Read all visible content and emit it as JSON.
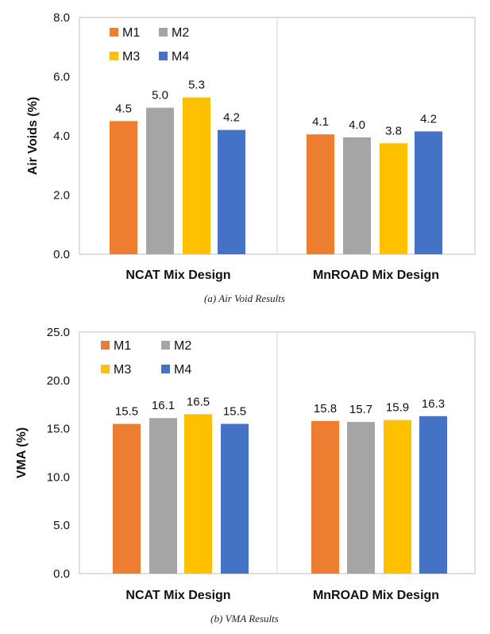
{
  "chart_data": [
    {
      "type": "bar",
      "title": "",
      "caption": "(a) Air Void Results",
      "xlabel": "",
      "ylabel": "Air Voids (%)",
      "ylim": [
        0,
        8
      ],
      "yticks": [
        "0.0",
        "2.0",
        "4.0",
        "6.0",
        "8.0"
      ],
      "categories": [
        "NCAT Mix Design",
        "MnROAD Mix Design"
      ],
      "legend_position": "top-left",
      "grid": false,
      "series": [
        {
          "name": "M1",
          "color": "#ED7D31",
          "values": [
            4.5,
            4.05
          ],
          "labels": [
            "4.5",
            "4.1"
          ]
        },
        {
          "name": "M2",
          "color": "#A5A5A5",
          "values": [
            4.95,
            3.95
          ],
          "labels": [
            "5.0",
            "4.0"
          ]
        },
        {
          "name": "M3",
          "color": "#FFC000",
          "values": [
            5.3,
            3.75
          ],
          "labels": [
            "5.3",
            "3.8"
          ]
        },
        {
          "name": "M4",
          "color": "#4472C4",
          "values": [
            4.2,
            4.15
          ],
          "labels": [
            "4.2",
            "4.2"
          ]
        }
      ]
    },
    {
      "type": "bar",
      "title": "",
      "caption": "(b) VMA Results",
      "xlabel": "",
      "ylabel": "VMA (%)",
      "ylim": [
        0,
        25
      ],
      "yticks": [
        "0.0",
        "5.0",
        "10.0",
        "15.0",
        "20.0",
        "25.0"
      ],
      "categories": [
        "NCAT Mix Design",
        "MnROAD Mix Design"
      ],
      "legend_position": "top-left",
      "grid": false,
      "series": [
        {
          "name": "M1",
          "color": "#ED7D31",
          "values": [
            15.5,
            15.8
          ],
          "labels": [
            "15.5",
            "15.8"
          ]
        },
        {
          "name": "M2",
          "color": "#A5A5A5",
          "values": [
            16.1,
            15.7
          ],
          "labels": [
            "16.1",
            "15.7"
          ]
        },
        {
          "name": "M3",
          "color": "#FFC000",
          "values": [
            16.5,
            15.9
          ],
          "labels": [
            "16.5",
            "15.9"
          ]
        },
        {
          "name": "M4",
          "color": "#4472C4",
          "values": [
            15.5,
            16.3
          ],
          "labels": [
            "15.5",
            "16.3"
          ]
        }
      ]
    }
  ]
}
